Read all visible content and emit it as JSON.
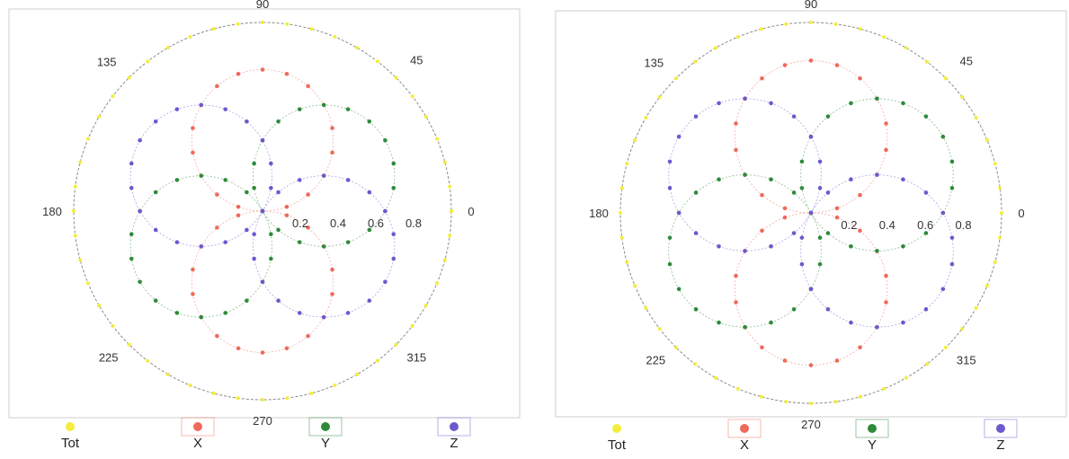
{
  "chart_data": [
    {
      "type": "scatter",
      "subtype": "polar",
      "angle_ticks": [
        "0",
        "45",
        "90",
        "135",
        "180",
        "225",
        "270",
        "315"
      ],
      "radial_ticks": [
        "0.2",
        "0.4",
        "0.6",
        "0.8"
      ],
      "rlim": [
        0,
        1
      ],
      "legend_position": "bottom",
      "series": [
        {
          "name": "Tot",
          "color": "#f2ee3a",
          "r_max": 1.0,
          "lobe_angle_deg": 0,
          "lobes": 0
        },
        {
          "name": "X",
          "color": "#ef6a5a",
          "r_max": 0.75,
          "lobe_angle_deg": 90,
          "lobes": 2
        },
        {
          "name": "Y",
          "color": "#2e8b3a",
          "r_max": 0.75,
          "lobe_angle_deg": 30,
          "lobes": 2
        },
        {
          "name": "Z",
          "color": "#6a5acd",
          "r_max": 0.75,
          "lobe_angle_deg": 150,
          "lobes": 2
        }
      ]
    },
    {
      "type": "scatter",
      "subtype": "polar",
      "angle_ticks": [
        "0",
        "45",
        "90",
        "135",
        "180",
        "225",
        "270",
        "315"
      ],
      "radial_ticks": [
        "0.2",
        "0.4",
        "0.6",
        "0.8"
      ],
      "rlim": [
        0,
        1
      ],
      "legend_position": "bottom",
      "series": [
        {
          "name": "Tot",
          "color": "#f2ee3a",
          "r_max": 1.0,
          "lobe_angle_deg": 0,
          "lobes": 0
        },
        {
          "name": "X",
          "color": "#ef6a5a",
          "r_max": 0.8,
          "lobe_angle_deg": 90,
          "lobes": 2
        },
        {
          "name": "Y",
          "color": "#2e8b3a",
          "r_max": 0.8,
          "lobe_angle_deg": 30,
          "lobes": 2
        },
        {
          "name": "Z",
          "color": "#6a5acd",
          "r_max": 0.8,
          "lobe_angle_deg": 150,
          "lobes": 2
        }
      ]
    }
  ]
}
